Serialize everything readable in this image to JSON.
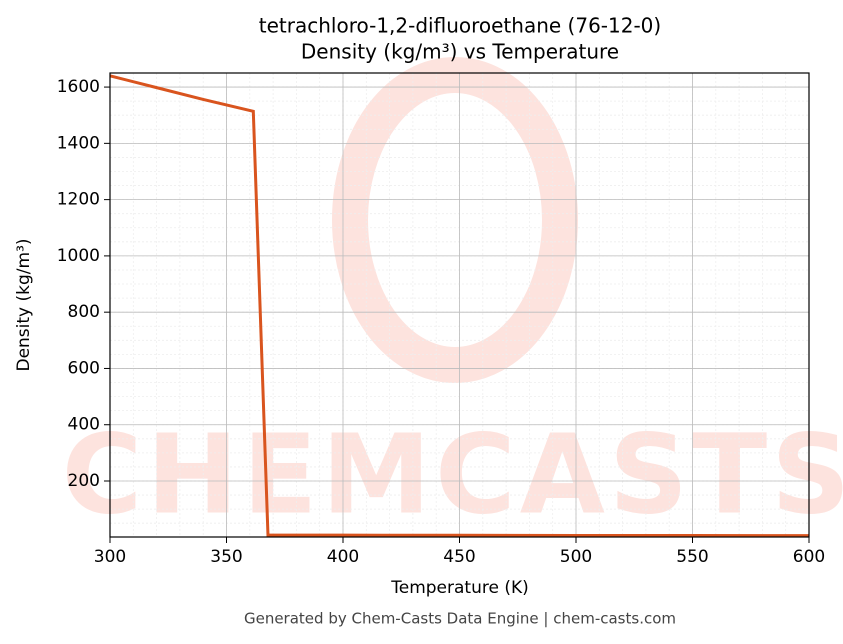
{
  "chart_data": {
    "type": "line",
    "title": "tetrachloro-1,2-difluoroethane (76-12-0)",
    "subtitle": "Density (kg/m³) vs Temperature",
    "xlabel": "Temperature (K)",
    "ylabel": "Density (kg/m³)",
    "footer": "Generated by Chem-Casts Data Engine | chem-casts.com",
    "watermark": "CHEMCASTS",
    "series": [
      {
        "name": "Density",
        "color": "#d9541e",
        "x": [
          300,
          320,
          340,
          361.5,
          367.8,
          400,
          450,
          500,
          550,
          600
        ],
        "values": [
          1640,
          1598,
          1556,
          1514,
          8,
          7.5,
          7,
          6.5,
          6.2,
          6
        ]
      }
    ],
    "xlim": [
      300,
      600
    ],
    "xticks": [
      300,
      350,
      400,
      450,
      500,
      550,
      600
    ],
    "ylim": [
      1,
      1650
    ],
    "yticks": [
      200,
      400,
      600,
      800,
      1000,
      1200,
      1400,
      1600
    ],
    "grid": true
  }
}
